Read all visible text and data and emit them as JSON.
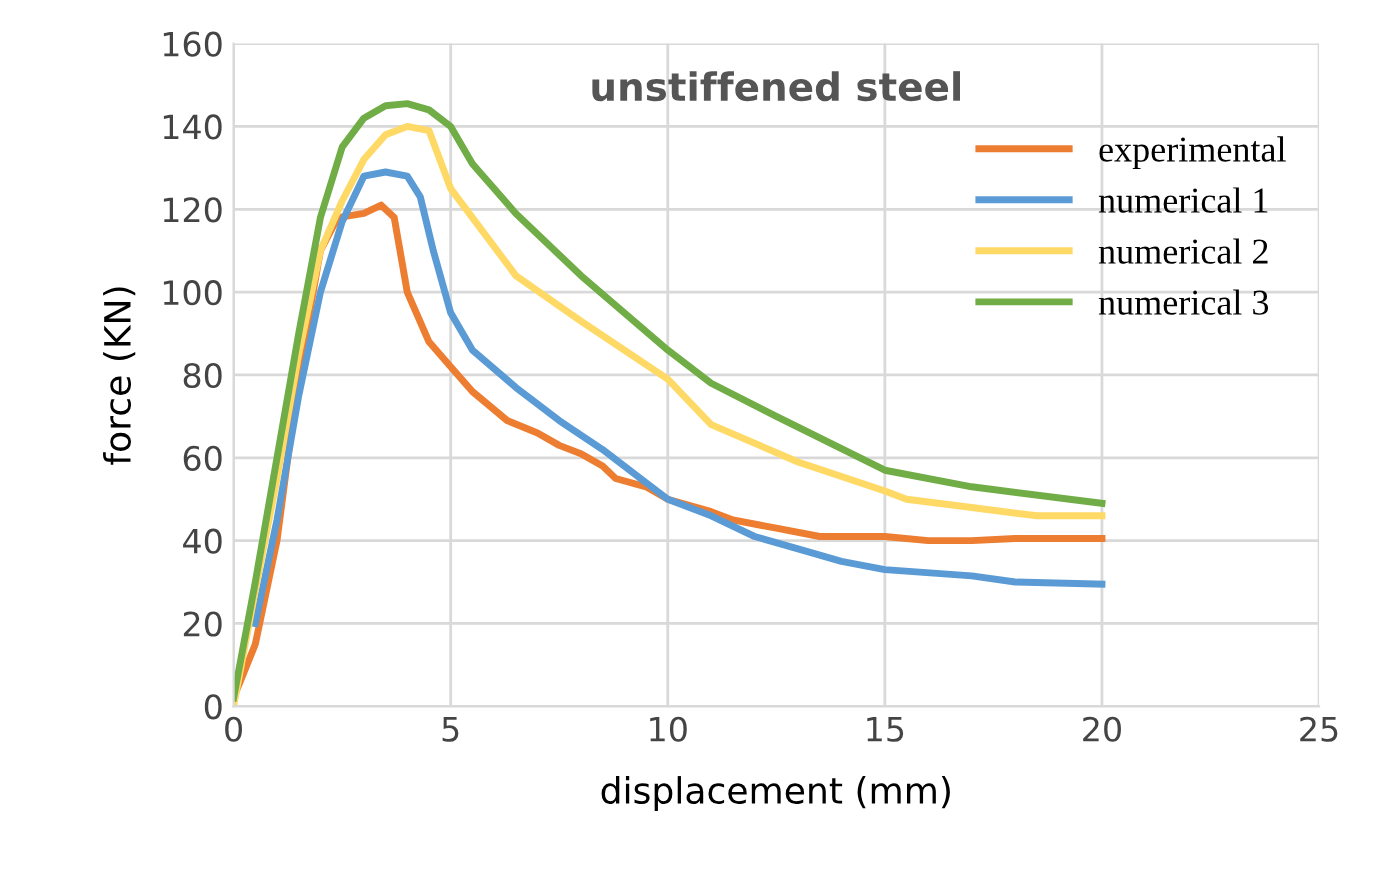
{
  "chart_data": {
    "type": "line",
    "title": "unstiffened steel",
    "xlabel": "displacement (mm)",
    "ylabel": "force (KN)",
    "xlim": [
      0,
      25
    ],
    "xticks": [
      0,
      5,
      10,
      15,
      20,
      25
    ],
    "ylim": [
      0,
      160
    ],
    "yticks": [
      0,
      20,
      40,
      60,
      80,
      100,
      120,
      140,
      160
    ],
    "grid": true,
    "legend": "right",
    "marker": "none",
    "line_style": "solid",
    "series": [
      {
        "name": "experimental",
        "color": "#ed7d31",
        "x": [
          0,
          0.5,
          1,
          1.5,
          2,
          2.4,
          3,
          3.4,
          3.7,
          4,
          4.5,
          5,
          5.5,
          6.3,
          7,
          7.5,
          8,
          8.5,
          8.8,
          9.5,
          10,
          11,
          11.5,
          12.5,
          13.5,
          15,
          16,
          17,
          18,
          20
        ],
        "values": [
          2,
          15,
          40,
          80,
          110,
          118,
          119,
          121,
          118,
          100,
          88,
          82,
          76,
          69,
          66,
          63,
          61,
          58,
          55,
          53,
          50,
          47,
          45,
          43,
          41,
          41,
          40,
          40,
          40.5,
          40.5
        ]
      },
      {
        "name": "numerical 1",
        "color": "#5b9bd5",
        "x": [
          0.5,
          1,
          1.5,
          2,
          2.5,
          3,
          3.5,
          4,
          4.3,
          4.6,
          5,
          5.5,
          6.5,
          7.5,
          8.5,
          9.5,
          10,
          11,
          12,
          13,
          14,
          15,
          17,
          18,
          20
        ],
        "values": [
          20,
          45,
          75,
          100,
          117,
          128,
          129,
          128,
          123,
          110,
          95,
          86,
          77,
          69,
          62,
          54,
          50,
          46,
          41,
          38,
          35,
          33,
          31.5,
          30,
          29.5
        ]
      },
      {
        "name": "numerical 2",
        "color": "#ffd966",
        "x": [
          0,
          0.5,
          1,
          1.5,
          2,
          2.5,
          3,
          3.5,
          4,
          4.5,
          5,
          5.5,
          6.5,
          8,
          10,
          11,
          13,
          15,
          15.5,
          17,
          18.5,
          20
        ],
        "values": [
          0,
          28,
          55,
          85,
          110,
          122,
          132,
          138,
          140,
          139,
          125,
          118,
          104,
          93,
          79,
          68,
          59,
          52,
          50,
          48,
          46,
          46
        ]
      },
      {
        "name": "numerical 3",
        "color": "#70ad47",
        "x": [
          0,
          0.5,
          1,
          1.5,
          2,
          2.5,
          3,
          3.5,
          4,
          4.5,
          5,
          5.5,
          6.5,
          8,
          10,
          11,
          12.5,
          15,
          17,
          20
        ],
        "values": [
          2,
          30,
          60,
          90,
          118,
          135,
          142,
          145,
          145.5,
          144,
          140,
          131,
          119,
          104,
          86,
          78,
          70,
          57,
          53,
          49
        ]
      }
    ]
  }
}
